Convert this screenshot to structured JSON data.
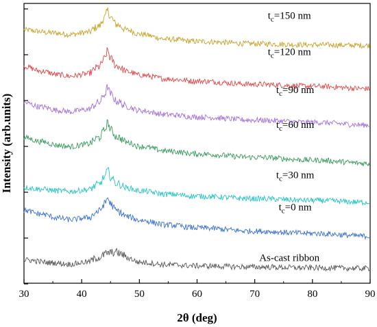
{
  "chart_data": {
    "type": "line",
    "xlabel": "2θ (deg)",
    "ylabel": "Intensity (arb.units)",
    "xlim": [
      30,
      90
    ],
    "x_ticks": [
      "30",
      "40",
      "50",
      "60",
      "70",
      "80",
      "90"
    ],
    "y_tick_labels_shown": false,
    "grid": false,
    "legend": "none (series labelled directly above each curve)",
    "peak_position_2theta": 44.5,
    "series": [
      {
        "label_main": "t",
        "label_sub": "c",
        "label_rest": "=150 nm",
        "color": "#c9a227",
        "x": [
          30,
          35,
          38,
          41,
          43,
          44,
          44.5,
          45,
          46,
          48,
          50,
          55,
          60,
          70,
          80,
          90
        ],
        "y": [
          0.905,
          0.895,
          0.889,
          0.897,
          0.918,
          0.95,
          0.975,
          0.95,
          0.925,
          0.905,
          0.89,
          0.872,
          0.864,
          0.856,
          0.852,
          0.85
        ]
      },
      {
        "label_main": "t",
        "label_sub": "c",
        "label_rest": "=120 nm",
        "color": "#e04848",
        "x": [
          30,
          33,
          36,
          38,
          41,
          43,
          44,
          44.5,
          45,
          46,
          48,
          50,
          55,
          60,
          70,
          80,
          90
        ],
        "y": [
          0.775,
          0.758,
          0.745,
          0.74,
          0.748,
          0.773,
          0.803,
          0.832,
          0.803,
          0.777,
          0.756,
          0.744,
          0.73,
          0.722,
          0.711,
          0.704,
          0.695
        ]
      },
      {
        "label_main": "t",
        "label_sub": "c",
        "label_rest": "=90 nm",
        "color": "#a36fdd",
        "x": [
          30,
          33,
          36,
          38,
          41,
          43,
          44,
          44.5,
          45,
          46,
          48,
          50,
          55,
          60,
          70,
          80,
          90
        ],
        "y": [
          0.645,
          0.63,
          0.618,
          0.613,
          0.621,
          0.645,
          0.675,
          0.702,
          0.676,
          0.651,
          0.63,
          0.617,
          0.602,
          0.594,
          0.583,
          0.575,
          0.565
        ]
      },
      {
        "label_main": "t",
        "label_sub": "c",
        "label_rest": "=60 nm",
        "color": "#3a9a5e",
        "x": [
          30,
          33,
          36,
          38,
          41,
          43,
          44,
          44.5,
          45,
          46,
          48,
          50,
          55,
          60,
          70,
          80,
          90
        ],
        "y": [
          0.52,
          0.506,
          0.493,
          0.488,
          0.497,
          0.52,
          0.548,
          0.575,
          0.549,
          0.524,
          0.503,
          0.489,
          0.472,
          0.462,
          0.45,
          0.44,
          0.428
        ]
      },
      {
        "label_main": "t",
        "label_sub": "c",
        "label_rest": "=30 nm",
        "color": "#27c4c4",
        "x": [
          30,
          33,
          36,
          38,
          41,
          43,
          44,
          44.5,
          45,
          46,
          48,
          50,
          55,
          60,
          70,
          80,
          90
        ],
        "y": [
          0.342,
          0.336,
          0.33,
          0.328,
          0.334,
          0.353,
          0.38,
          0.405,
          0.38,
          0.357,
          0.34,
          0.33,
          0.318,
          0.311,
          0.302,
          0.296,
          0.289
        ]
      },
      {
        "label_main": "t",
        "label_sub": "c",
        "label_rest": "=0 nm",
        "color": "#3a6fd0",
        "x": [
          30,
          33,
          36,
          38,
          41,
          43,
          44,
          44.5,
          45,
          46,
          48,
          50,
          55,
          60,
          70,
          80,
          90
        ],
        "y": [
          0.26,
          0.247,
          0.233,
          0.227,
          0.234,
          0.257,
          0.284,
          0.305,
          0.284,
          0.259,
          0.238,
          0.225,
          0.208,
          0.198,
          0.186,
          0.178,
          0.168
        ]
      },
      {
        "label_main": "As-cast ribbon",
        "label_sub": "",
        "label_rest": "",
        "color": "#555555",
        "x": [
          30,
          35,
          38,
          41,
          43,
          44.5,
          46,
          47,
          48,
          50,
          55,
          60,
          70,
          80,
          90
        ],
        "y": [
          0.083,
          0.073,
          0.068,
          0.076,
          0.092,
          0.108,
          0.111,
          0.103,
          0.09,
          0.075,
          0.066,
          0.062,
          0.058,
          0.055,
          0.053
        ]
      }
    ]
  }
}
